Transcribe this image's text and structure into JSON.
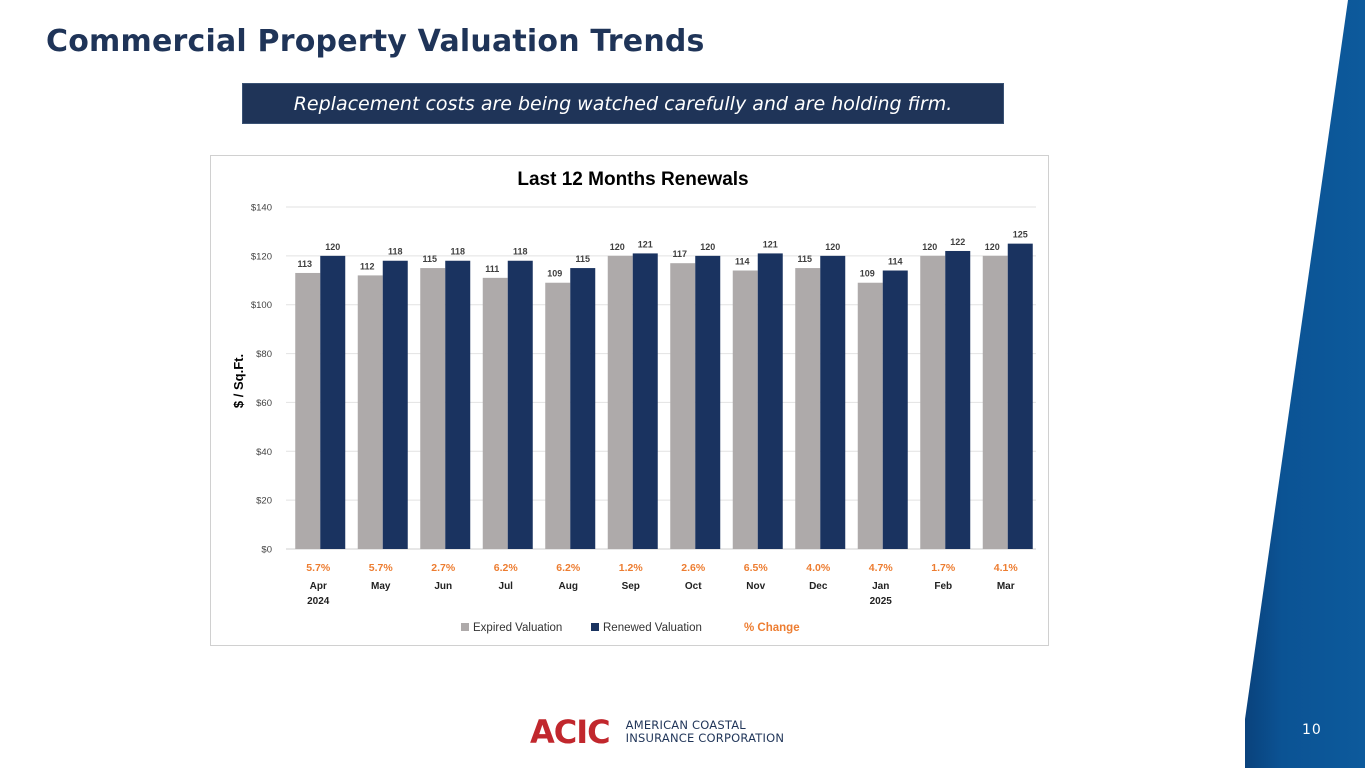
{
  "slide": {
    "title": "Commercial Property Valuation Trends",
    "callout": "Replacement costs are being watched carefully and are holding firm.",
    "page_number": "10",
    "logo": {
      "mark": "ACIC",
      "line1": "AMERICAN COASTAL",
      "line2": "INSURANCE CORPORATION"
    }
  },
  "colors": {
    "title": "#1f3458",
    "callout_bg": "#1f3458",
    "expired": "#aeaaaa",
    "renewed": "#1a3360",
    "pct_change": "#ed7d31",
    "logo_red": "#c1272d",
    "side_band": "#0b5394"
  },
  "chart_data": {
    "type": "bar",
    "title": "Last 12 Months Renewals",
    "xlabel": "",
    "ylabel": "$ / Sq.Ft.",
    "ylim": [
      0,
      140
    ],
    "yticks": [
      0,
      20,
      40,
      60,
      80,
      100,
      120,
      140
    ],
    "ytick_labels": [
      "$0",
      "$20",
      "$40",
      "$60",
      "$80",
      "$100",
      "$120",
      "$140"
    ],
    "grid": true,
    "legend_position": "bottom",
    "categories": [
      "Apr",
      "May",
      "Jun",
      "Jul",
      "Aug",
      "Sep",
      "Oct",
      "Nov",
      "Dec",
      "Jan",
      "Feb",
      "Mar"
    ],
    "category_sublabels": [
      "2024",
      "",
      "",
      "",
      "",
      "",
      "",
      "",
      "",
      "2025",
      "",
      ""
    ],
    "series": [
      {
        "name": "Expired Valuation",
        "values": [
          113,
          112,
          115,
          111,
          109,
          120,
          117,
          114,
          115,
          109,
          120,
          120
        ]
      },
      {
        "name": "Renewed Valuation",
        "values": [
          120,
          118,
          118,
          118,
          115,
          121,
          120,
          121,
          120,
          114,
          122,
          125
        ]
      }
    ],
    "pct_change": {
      "name": "% Change",
      "labels": [
        "5.7%",
        "5.7%",
        "2.7%",
        "6.2%",
        "6.2%",
        "1.2%",
        "2.6%",
        "6.5%",
        "4.0%",
        "4.7%",
        "1.7%",
        "4.1%"
      ]
    }
  }
}
